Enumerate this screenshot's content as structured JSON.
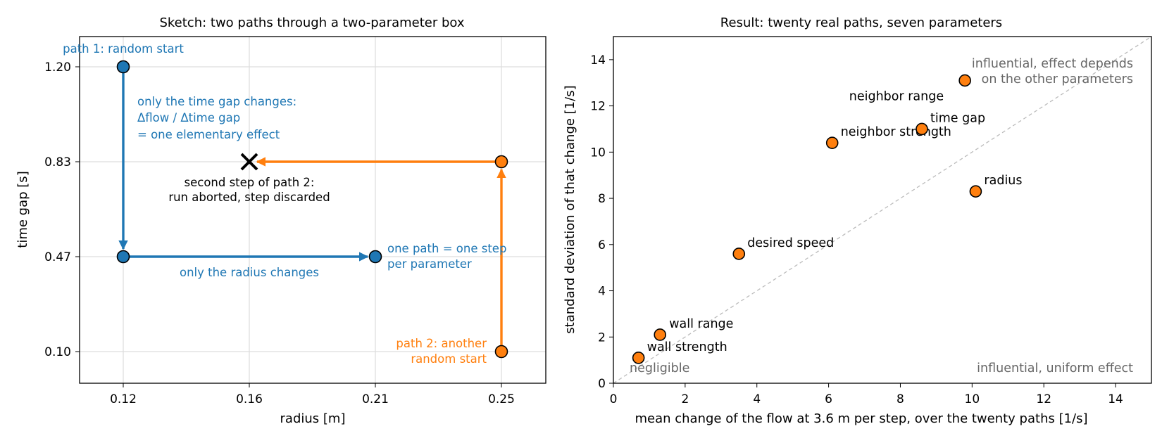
{
  "chart_data": [
    {
      "type": "line",
      "title": "Sketch: two paths through a two-parameter box",
      "xlabel": "radius [m]",
      "ylabel": "time gap [s]",
      "x_ticks": [
        "0.12",
        "0.16",
        "0.21",
        "0.25"
      ],
      "y_ticks": [
        "0.10",
        "0.47",
        "0.83",
        "1.20"
      ],
      "grid": true,
      "series": [
        {
          "name": "path 1",
          "color": "#1f77b4",
          "points": [
            [
              "0.12",
              "1.20"
            ],
            [
              "0.12",
              "0.47"
            ],
            [
              "0.21",
              "0.47"
            ]
          ]
        },
        {
          "name": "path 2",
          "color": "#ff7f0e",
          "points": [
            [
              "0.25",
              "0.10"
            ],
            [
              "0.25",
              "0.83"
            ],
            [
              "0.16",
              "0.83"
            ]
          ],
          "aborted_point": [
            "0.16",
            "0.83"
          ]
        }
      ],
      "annotations": {
        "path1_start": "path 1: random start",
        "time_gap_note": [
          "only the time gap changes:",
          "Δflow / Δtime gap",
          "= one elementary effect"
        ],
        "radius_note": "only the radius changes",
        "one_path_note": [
          "one path = one step",
          "per parameter"
        ],
        "path2_start": [
          "path 2: another",
          "random start"
        ],
        "aborted_note": [
          "second step of path 2:",
          "run aborted, step discarded"
        ]
      }
    },
    {
      "type": "scatter",
      "title": "Result: twenty real paths, seven parameters",
      "xlabel": "mean change of the flow at 3.6 m per step, over the twenty paths  [1/s]",
      "ylabel": "standard deviation of that change  [1/s]",
      "xlim": [
        0,
        15
      ],
      "ylim": [
        0,
        15
      ],
      "x_ticks": [
        0,
        2,
        4,
        6,
        8,
        10,
        12,
        14
      ],
      "y_ticks": [
        0,
        2,
        4,
        6,
        8,
        10,
        12,
        14
      ],
      "grid": false,
      "reference_line": "y = x",
      "point_color": "#ff7f0e",
      "points": [
        {
          "label": "wall strength",
          "x": 0.7,
          "y": 1.1
        },
        {
          "label": "wall range",
          "x": 1.3,
          "y": 2.1
        },
        {
          "label": "desired speed",
          "x": 3.5,
          "y": 5.6
        },
        {
          "label": "neighbor strength",
          "x": 6.1,
          "y": 10.4
        },
        {
          "label": "time gap",
          "x": 8.6,
          "y": 11.0
        },
        {
          "label": "neighbor range",
          "x": 9.8,
          "y": 13.1
        },
        {
          "label": "radius",
          "x": 10.1,
          "y": 8.3
        }
      ],
      "region_labels": {
        "top": [
          "influential, effect depends",
          "on the other parameters"
        ],
        "bottom_left": "negligible",
        "bottom_right": "influential, uniform effect"
      }
    }
  ]
}
